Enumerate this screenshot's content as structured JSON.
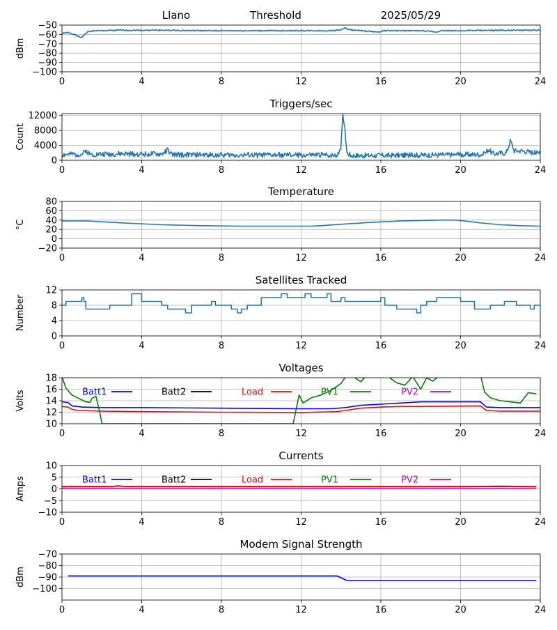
{
  "header": {
    "station": "Llano",
    "mode": "Threshold",
    "date": "2025/05/29"
  },
  "colors": {
    "default": "#1f77b4",
    "blue": "#0000ff",
    "black": "#000000",
    "red": "#ff0000",
    "green": "#008000",
    "magenta": "#bf00bf"
  },
  "chart_data": [
    {
      "type": "line",
      "title": "",
      "xlabel": "",
      "ylabel": "dBm",
      "xlim": [
        0,
        24
      ],
      "xticks": [
        0,
        4,
        8,
        12,
        16,
        20,
        24
      ],
      "ylim": [
        -100,
        -50
      ],
      "yticks": [
        -100,
        -90,
        -80,
        -70,
        -60,
        -50
      ],
      "grid": true,
      "series": [
        {
          "color": "#1f77b4",
          "noise": 0.6,
          "seed": 1,
          "x": [
            0,
            0.3,
            0.5,
            0.7,
            0.9,
            1.0,
            1.1,
            1.3,
            1.6,
            2.0,
            3,
            5,
            7,
            9,
            11,
            12.5,
            13.5,
            14.0,
            14.2,
            14.4,
            15,
            15.9,
            16.1,
            17,
            18,
            18.8,
            19.0,
            19.2,
            20,
            22,
            24
          ],
          "y": [
            -59,
            -58,
            -59,
            -61,
            -63,
            -63,
            -61,
            -57,
            -56,
            -56,
            -55.5,
            -55.5,
            -56,
            -56,
            -56,
            -56,
            -56,
            -55,
            -53,
            -55,
            -56,
            -57.5,
            -56,
            -56,
            -56,
            -57.5,
            -56,
            -56,
            -56,
            -55.5,
            -55.5
          ]
        }
      ]
    },
    {
      "type": "line",
      "title": "Triggers/sec",
      "xlabel": "",
      "ylabel": "Count",
      "xlim": [
        0,
        24
      ],
      "xticks": [
        0,
        4,
        8,
        12,
        16,
        20,
        24
      ],
      "ylim": [
        0,
        12500
      ],
      "yticks": [
        0,
        4000,
        8000,
        12000
      ],
      "grid": true,
      "series": [
        {
          "color": "#1f77b4",
          "noise": 700,
          "seed": 2,
          "floor": 0,
          "x": [
            0,
            1,
            1.2,
            1.4,
            3,
            5,
            5.3,
            5.5,
            8,
            10,
            12,
            13.8,
            14.0,
            14.1,
            14.2,
            14.3,
            14.5,
            16,
            18,
            20,
            21.2,
            21.4,
            21.6,
            22.3,
            22.5,
            22.7,
            23,
            24
          ],
          "y": [
            1500,
            1600,
            2600,
            1600,
            1700,
            1600,
            2800,
            1500,
            1400,
            1400,
            1400,
            1400,
            3500,
            12500,
            8000,
            2000,
            1300,
            1300,
            1400,
            1500,
            1600,
            3000,
            1800,
            2000,
            5300,
            2500,
            2600,
            1800
          ]
        }
      ]
    },
    {
      "type": "line",
      "title": "Temperature",
      "xlabel": "",
      "ylabel": "°C",
      "xlim": [
        0,
        24
      ],
      "xticks": [
        0,
        4,
        8,
        12,
        16,
        20,
        24
      ],
      "ylim": [
        -20,
        80
      ],
      "yticks": [
        -20,
        0,
        20,
        40,
        60,
        80
      ],
      "grid": true,
      "series": [
        {
          "color": "#1f77b4",
          "noise": 0,
          "seed": 3,
          "x": [
            0,
            1.3,
            3,
            5,
            7,
            9,
            11,
            12.5,
            13,
            14,
            15.5,
            17,
            19,
            19.8,
            21,
            22,
            23,
            24
          ],
          "y": [
            38,
            38,
            34,
            30,
            28,
            27,
            27,
            27,
            28,
            31,
            35,
            38,
            40,
            40,
            34,
            30,
            28,
            27
          ]
        }
      ]
    },
    {
      "type": "line",
      "title": "Satellites Tracked",
      "xlabel": "",
      "ylabel": "Number",
      "xlim": [
        0,
        24
      ],
      "xticks": [
        0,
        4,
        8,
        12,
        16,
        20,
        24
      ],
      "ylim": [
        0,
        12
      ],
      "yticks": [
        0,
        4,
        8,
        12
      ],
      "grid": true,
      "series": [
        {
          "color": "#1f77b4",
          "step": true,
          "x": [
            0,
            0.2,
            0.8,
            1.0,
            1.1,
            1.2,
            2.2,
            2.4,
            3.5,
            3.8,
            4.0,
            4.5,
            5.0,
            5.3,
            6.0,
            6.2,
            6.5,
            7.0,
            7.5,
            7.7,
            8.5,
            8.8,
            9.0,
            9.3,
            10.0,
            11.0,
            11.3,
            12.0,
            12.2,
            12.5,
            13.0,
            13.3,
            13.5,
            14.0,
            14.2,
            14.5,
            15.0,
            15.8,
            16.0,
            16.2,
            16.8,
            17.5,
            17.8,
            18.0,
            18.3,
            18.8,
            19.5,
            20.0,
            20.5,
            20.7,
            21.0,
            21.5,
            22.0,
            22.2,
            22.8,
            23.0,
            23.5,
            23.7,
            24
          ],
          "y": [
            8,
            9,
            9,
            10,
            9,
            7,
            7,
            8,
            11,
            11,
            9,
            9,
            8,
            7,
            7,
            6,
            8,
            8,
            9,
            8,
            7,
            6,
            7,
            8,
            10,
            11,
            10,
            10,
            11,
            10,
            10,
            11,
            9,
            10,
            9,
            9,
            9,
            9,
            10,
            8,
            7,
            7,
            6,
            8,
            9,
            10,
            10,
            9,
            9,
            7,
            7,
            8,
            8,
            9,
            8,
            8,
            7,
            8,
            8
          ]
        }
      ]
    },
    {
      "type": "line",
      "title": "Voltages",
      "xlabel": "",
      "ylabel": "Volts",
      "xlim": [
        0,
        24
      ],
      "xticks": [
        0,
        4,
        8,
        12,
        16,
        20,
        24
      ],
      "ylim": [
        10,
        18
      ],
      "yticks": [
        10,
        12,
        14,
        16,
        18
      ],
      "grid": true,
      "legend": {
        "placement": "top-inside",
        "entries": [
          "Batt1",
          "Batt2",
          "Load",
          "PV1",
          "PV2"
        ],
        "colors": [
          "#0000ff",
          "#000000",
          "#ff0000",
          "#008000",
          "#bf00bf"
        ]
      },
      "series": [
        {
          "name": "Batt1",
          "color": "#0000ff",
          "x": [
            0,
            0.3,
            0.5,
            1,
            2,
            4,
            8,
            12,
            13.5,
            14.2,
            15,
            15.5,
            16,
            17,
            17.5,
            18,
            21,
            21.3,
            22,
            24
          ],
          "y": [
            13.8,
            13.7,
            13.1,
            12.9,
            12.8,
            12.8,
            12.7,
            12.6,
            12.6,
            12.8,
            13.2,
            13.3,
            13.4,
            13.6,
            13.7,
            13.8,
            13.8,
            12.9,
            12.8,
            12.8
          ]
        },
        {
          "name": "Load",
          "color": "#ff0000",
          "x": [
            0,
            0.3,
            0.5,
            0.8,
            2,
            4,
            8,
            12,
            13.8,
            14.2,
            15,
            15.5,
            16,
            17,
            18,
            21,
            21.3,
            22,
            24
          ],
          "y": [
            13.0,
            12.9,
            12.5,
            12.3,
            12.2,
            12.1,
            12.0,
            11.95,
            12.1,
            12.3,
            12.7,
            12.8,
            12.9,
            13.0,
            13.0,
            13.1,
            12.3,
            12.2,
            12.2
          ]
        },
        {
          "name": "PV1",
          "color": "#008000",
          "x": [
            0,
            0.2,
            0.5,
            0.9,
            1.2,
            1.4,
            1.5,
            1.7,
            1.9,
            2.0,
            11.6,
            11.9,
            12.1,
            12.5,
            13.0,
            13.5,
            14.0,
            14.3,
            14.6,
            15.0,
            15.3,
            15.6,
            16.0,
            16.4,
            16.8,
            17.2,
            17.6,
            18.0,
            18.3,
            18.6,
            18.9,
            19.3,
            21.0,
            21.2,
            21.5,
            22.0,
            22.5,
            23.0,
            23.4,
            23.8
          ],
          "y": [
            18.2,
            16.2,
            15.0,
            14.3,
            13.8,
            13.7,
            14.4,
            14.8,
            12.0,
            10.0,
            10.0,
            15.0,
            13.6,
            14.5,
            15.0,
            15.8,
            17.0,
            18.5,
            18.2,
            17.3,
            18.5,
            19.5,
            19.0,
            18.1,
            17.1,
            16.7,
            18.2,
            16.0,
            18.0,
            17.4,
            18.2,
            18.9,
            18.5,
            15.5,
            14.5,
            14.0,
            13.8,
            13.6,
            15.4,
            15.2
          ]
        }
      ]
    },
    {
      "type": "line",
      "title": "Currents",
      "xlabel": "",
      "ylabel": "Amps",
      "xlim": [
        0,
        24
      ],
      "xticks": [
        0,
        4,
        8,
        12,
        16,
        20,
        24
      ],
      "ylim": [
        -10,
        10
      ],
      "yticks": [
        -10,
        -5,
        0,
        5,
        10
      ],
      "grid": true,
      "legend": {
        "placement": "top-inside",
        "entries": [
          "Batt1",
          "Batt2",
          "Load",
          "PV1",
          "PV2"
        ],
        "colors": [
          "#0000ff",
          "#000000",
          "#ff0000",
          "#008000",
          "#bf00bf"
        ]
      },
      "series": [
        {
          "name": "PV2",
          "color": "#bf00bf",
          "x": [
            0,
            23.8
          ],
          "y": [
            0.3,
            0.3
          ]
        },
        {
          "name": "Batt2",
          "color": "#000000",
          "x": [
            0,
            2.5,
            2.8,
            3.2,
            6,
            23.8
          ],
          "y": [
            1.0,
            1.0,
            1.2,
            1.0,
            1.0,
            1.0
          ]
        },
        {
          "name": "Load",
          "color": "#ff0000",
          "x": [
            0,
            2.5,
            2.8,
            3.2,
            12,
            20,
            22,
            23.8
          ],
          "y": [
            1.0,
            1.0,
            1.3,
            1.0,
            1.0,
            1.0,
            1.2,
            1.0
          ]
        }
      ]
    },
    {
      "type": "line",
      "title": "Modem Signal Strength",
      "xlabel": "",
      "ylabel": "dBm",
      "xlim": [
        0,
        24
      ],
      "xticks": [
        0,
        4,
        8,
        12,
        16,
        20,
        24
      ],
      "ylim": [
        -110,
        -70
      ],
      "yticks": [
        -100,
        -90,
        -80,
        -70
      ],
      "grid": true,
      "series": [
        {
          "color": "#0000ff",
          "x": [
            0.3,
            13.8,
            14.3,
            23.8
          ],
          "y": [
            -89,
            -89,
            -93,
            -93
          ]
        }
      ]
    }
  ]
}
